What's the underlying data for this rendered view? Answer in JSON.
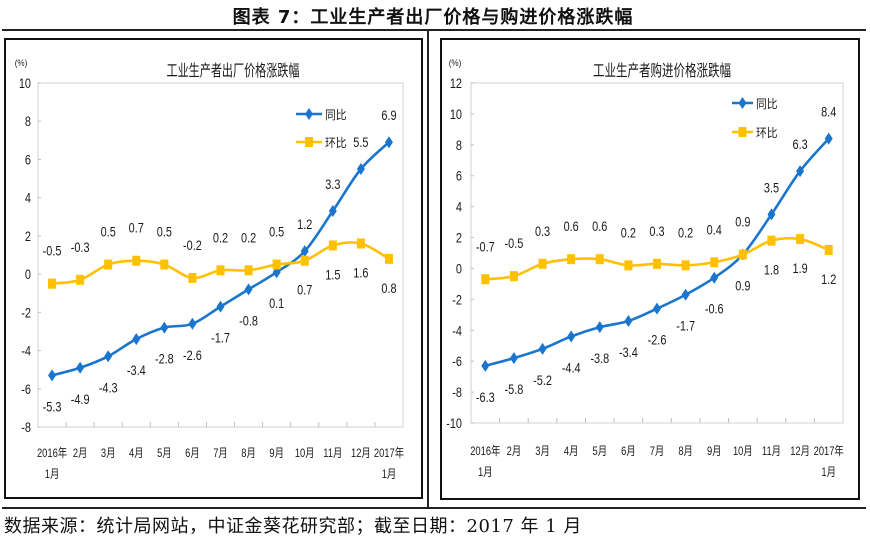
{
  "title": "图表 7：工业生产者出厂价格与购进价格涨跌幅",
  "footer": "数据来源：统计局网站，中证金葵花研究部；截至日期：2017 年 1 月",
  "colors": {
    "yoy": "#1A75CF",
    "mom": "#FFC000",
    "plot_border": "#D9D9D9"
  },
  "chart_data": [
    {
      "type": "line",
      "title": "工业生产者出厂价格涨跌幅",
      "unit": "(%)",
      "xlabel": "",
      "categories": [
        [
          "2016年",
          "1月"
        ],
        [
          "2月"
        ],
        [
          "3月"
        ],
        [
          "4月"
        ],
        [
          "5月"
        ],
        [
          "6月"
        ],
        [
          "7月"
        ],
        [
          "8月"
        ],
        [
          "9月"
        ],
        [
          "10月"
        ],
        [
          "11月"
        ],
        [
          "12月"
        ],
        [
          "2017年",
          "1月"
        ]
      ],
      "ylim": [
        -8,
        10
      ],
      "y_ticks": [
        10,
        8,
        6,
        4,
        2,
        0,
        -2,
        -4,
        -6,
        -8
      ],
      "grid": false,
      "legend": "top-right",
      "series": [
        {
          "name": "同比",
          "color": "#1A75CF",
          "marker": "diamond",
          "values": [
            -5.3,
            -4.9,
            -4.3,
            -3.4,
            -2.8,
            -2.6,
            -1.7,
            -0.8,
            0.1,
            1.2,
            3.3,
            5.5,
            6.9
          ]
        },
        {
          "name": "环比",
          "color": "#FFC000",
          "marker": "square",
          "values": [
            -0.5,
            -0.3,
            0.5,
            0.7,
            0.5,
            -0.2,
            0.2,
            0.2,
            0.5,
            0.7,
            1.5,
            1.6,
            0.8
          ]
        }
      ]
    },
    {
      "type": "line",
      "title": "工业生产者购进价格涨跌幅",
      "unit": "(%)",
      "xlabel": "",
      "categories": [
        [
          "2016年",
          "1月"
        ],
        [
          "2月"
        ],
        [
          "3月"
        ],
        [
          "4月"
        ],
        [
          "5月"
        ],
        [
          "6月"
        ],
        [
          "7月"
        ],
        [
          "8月"
        ],
        [
          "9月"
        ],
        [
          "10月"
        ],
        [
          "11月"
        ],
        [
          "12月"
        ],
        [
          "2017年",
          "1月"
        ]
      ],
      "ylim": [
        -10,
        12
      ],
      "y_ticks": [
        12,
        10,
        8,
        6,
        4,
        2,
        0,
        -2,
        -4,
        -6,
        -8,
        -10
      ],
      "grid": false,
      "legend": "top-right",
      "series": [
        {
          "name": "同比",
          "color": "#1A75CF",
          "marker": "diamond",
          "values": [
            -6.3,
            -5.8,
            -5.2,
            -4.4,
            -3.8,
            -3.4,
            -2.6,
            -1.7,
            -0.6,
            0.9,
            3.5,
            6.3,
            8.4
          ]
        },
        {
          "name": "环比",
          "color": "#FFC000",
          "marker": "square",
          "values": [
            -0.7,
            -0.5,
            0.3,
            0.6,
            0.6,
            0.2,
            0.3,
            0.2,
            0.4,
            0.9,
            1.8,
            1.9,
            1.2
          ]
        }
      ]
    }
  ]
}
